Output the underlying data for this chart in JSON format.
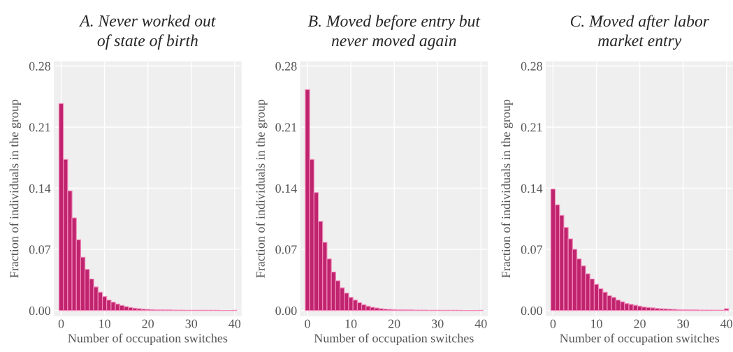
{
  "chart_data": [
    {
      "type": "histogram",
      "title": "A. Never worked out\nof state of birth",
      "xlabel": "Number of occupation switches",
      "ylabel": "Fraction of individuals in the group",
      "color": "#c0246e",
      "grid": true,
      "bins": [
        -0.5,
        0.5,
        1.5,
        2.5,
        3.5,
        4.5,
        5.5,
        6.5,
        7.5,
        8.5,
        9.5,
        10.5,
        11.5,
        12.5,
        13.5,
        14.5,
        15.5,
        16.5,
        17.5,
        18.5,
        19.5,
        20.5,
        21.5,
        22.5,
        23.5,
        24.5,
        25.5,
        26.5,
        27.5,
        28.5,
        29.5,
        30.5,
        31.5,
        32.5,
        33.5,
        34.5,
        35.5,
        36.5,
        37.5,
        38.5,
        39.5,
        40.5
      ],
      "values": [
        0.237,
        0.173,
        0.137,
        0.106,
        0.081,
        0.061,
        0.047,
        0.036,
        0.027,
        0.021,
        0.016,
        0.012,
        0.0096,
        0.0075,
        0.0059,
        0.0045,
        0.0035,
        0.0027,
        0.0021,
        0.0016,
        0.0013,
        0.0011,
        0.0009,
        0.0008,
        0.0007,
        0.0006,
        0.0005,
        0.0004,
        0.0004,
        0.0003,
        0.0003,
        0.0003,
        0.0002,
        0.0002,
        0.0002,
        0.0002,
        0.0002,
        0.0001,
        0.0001,
        0.0001,
        0.0003
      ],
      "xlim": [
        -1.6,
        41.5
      ],
      "ylim": [
        -0.006,
        0.285
      ],
      "xticks": [
        0,
        10,
        20,
        30,
        40
      ],
      "yticks": [
        {
          "value": 0,
          "label": "0.00"
        },
        {
          "value": 0.07,
          "label": "0.07"
        },
        {
          "value": 0.14,
          "label": "0.14"
        },
        {
          "value": 0.21,
          "label": "0.21"
        },
        {
          "value": 0.28,
          "label": "0.28"
        }
      ]
    },
    {
      "type": "histogram",
      "title": "B. Moved before entry but\nnever moved again",
      "xlabel": "Number of occupation switches",
      "ylabel": "Fraction of individuals in the group",
      "color": "#c0246e",
      "grid": true,
      "bins": [
        -0.5,
        0.5,
        1.5,
        2.5,
        3.5,
        4.5,
        5.5,
        6.5,
        7.5,
        8.5,
        9.5,
        10.5,
        11.5,
        12.5,
        13.5,
        14.5,
        15.5,
        16.5,
        17.5,
        18.5,
        19.5,
        20.5,
        21.5,
        22.5,
        23.5,
        24.5,
        25.5,
        26.5,
        27.5,
        28.5,
        29.5,
        30.5,
        31.5,
        32.5,
        33.5,
        34.5,
        35.5,
        36.5,
        37.5,
        38.5,
        39.5,
        40.5
      ],
      "values": [
        0.253,
        0.173,
        0.135,
        0.102,
        0.078,
        0.059,
        0.044,
        0.034,
        0.026,
        0.02,
        0.015,
        0.012,
        0.009,
        0.0067,
        0.005,
        0.0037,
        0.0029,
        0.0021,
        0.0016,
        0.0013,
        0.0011,
        0.0009,
        0.0008,
        0.0007,
        0.0006,
        0.0005,
        0.0004,
        0.0004,
        0.0003,
        0.0003,
        0.0003,
        0.0002,
        0.0002,
        0.0002,
        0.0002,
        0.0002,
        0.0001,
        0.0001,
        0.0001,
        0.0001,
        0.0002
      ],
      "xlim": [
        -1.6,
        41.5
      ],
      "ylim": [
        -0.006,
        0.285
      ],
      "xticks": [
        0,
        10,
        20,
        30,
        40
      ],
      "yticks": [
        {
          "value": 0,
          "label": "0.00"
        },
        {
          "value": 0.07,
          "label": "0.07"
        },
        {
          "value": 0.14,
          "label": "0.14"
        },
        {
          "value": 0.21,
          "label": "0.21"
        },
        {
          "value": 0.28,
          "label": "0.28"
        }
      ]
    },
    {
      "type": "histogram",
      "title": "C. Moved after labor\nmarket entry",
      "xlabel": "Number of occupation switches",
      "ylabel": "Fraction of individuals in the group",
      "color": "#c0246e",
      "grid": true,
      "bins": [
        -0.5,
        0.5,
        1.5,
        2.5,
        3.5,
        4.5,
        5.5,
        6.5,
        7.5,
        8.5,
        9.5,
        10.5,
        11.5,
        12.5,
        13.5,
        14.5,
        15.5,
        16.5,
        17.5,
        18.5,
        19.5,
        20.5,
        21.5,
        22.5,
        23.5,
        24.5,
        25.5,
        26.5,
        27.5,
        28.5,
        29.5,
        30.5,
        31.5,
        32.5,
        33.5,
        34.5,
        35.5,
        36.5,
        37.5,
        38.5,
        39.5,
        40.5
      ],
      "values": [
        0.139,
        0.121,
        0.109,
        0.095,
        0.082,
        0.07,
        0.059,
        0.051,
        0.042,
        0.036,
        0.03,
        0.025,
        0.021,
        0.017,
        0.015,
        0.012,
        0.01,
        0.008,
        0.007,
        0.006,
        0.005,
        0.004,
        0.0035,
        0.003,
        0.0024,
        0.002,
        0.0019,
        0.0016,
        0.0013,
        0.001,
        0.0009,
        0.0008,
        0.0007,
        0.0006,
        0.0005,
        0.0005,
        0.0004,
        0.0004,
        0.0003,
        0.0003,
        0.002
      ],
      "xlim": [
        -1.6,
        41.5
      ],
      "ylim": [
        -0.006,
        0.285
      ],
      "xticks": [
        0,
        10,
        20,
        30,
        40
      ],
      "yticks": [
        {
          "value": 0,
          "label": "0.00"
        },
        {
          "value": 0.07,
          "label": "0.07"
        },
        {
          "value": 0.14,
          "label": "0.14"
        },
        {
          "value": 0.21,
          "label": "0.21"
        },
        {
          "value": 0.28,
          "label": "0.28"
        }
      ]
    }
  ]
}
